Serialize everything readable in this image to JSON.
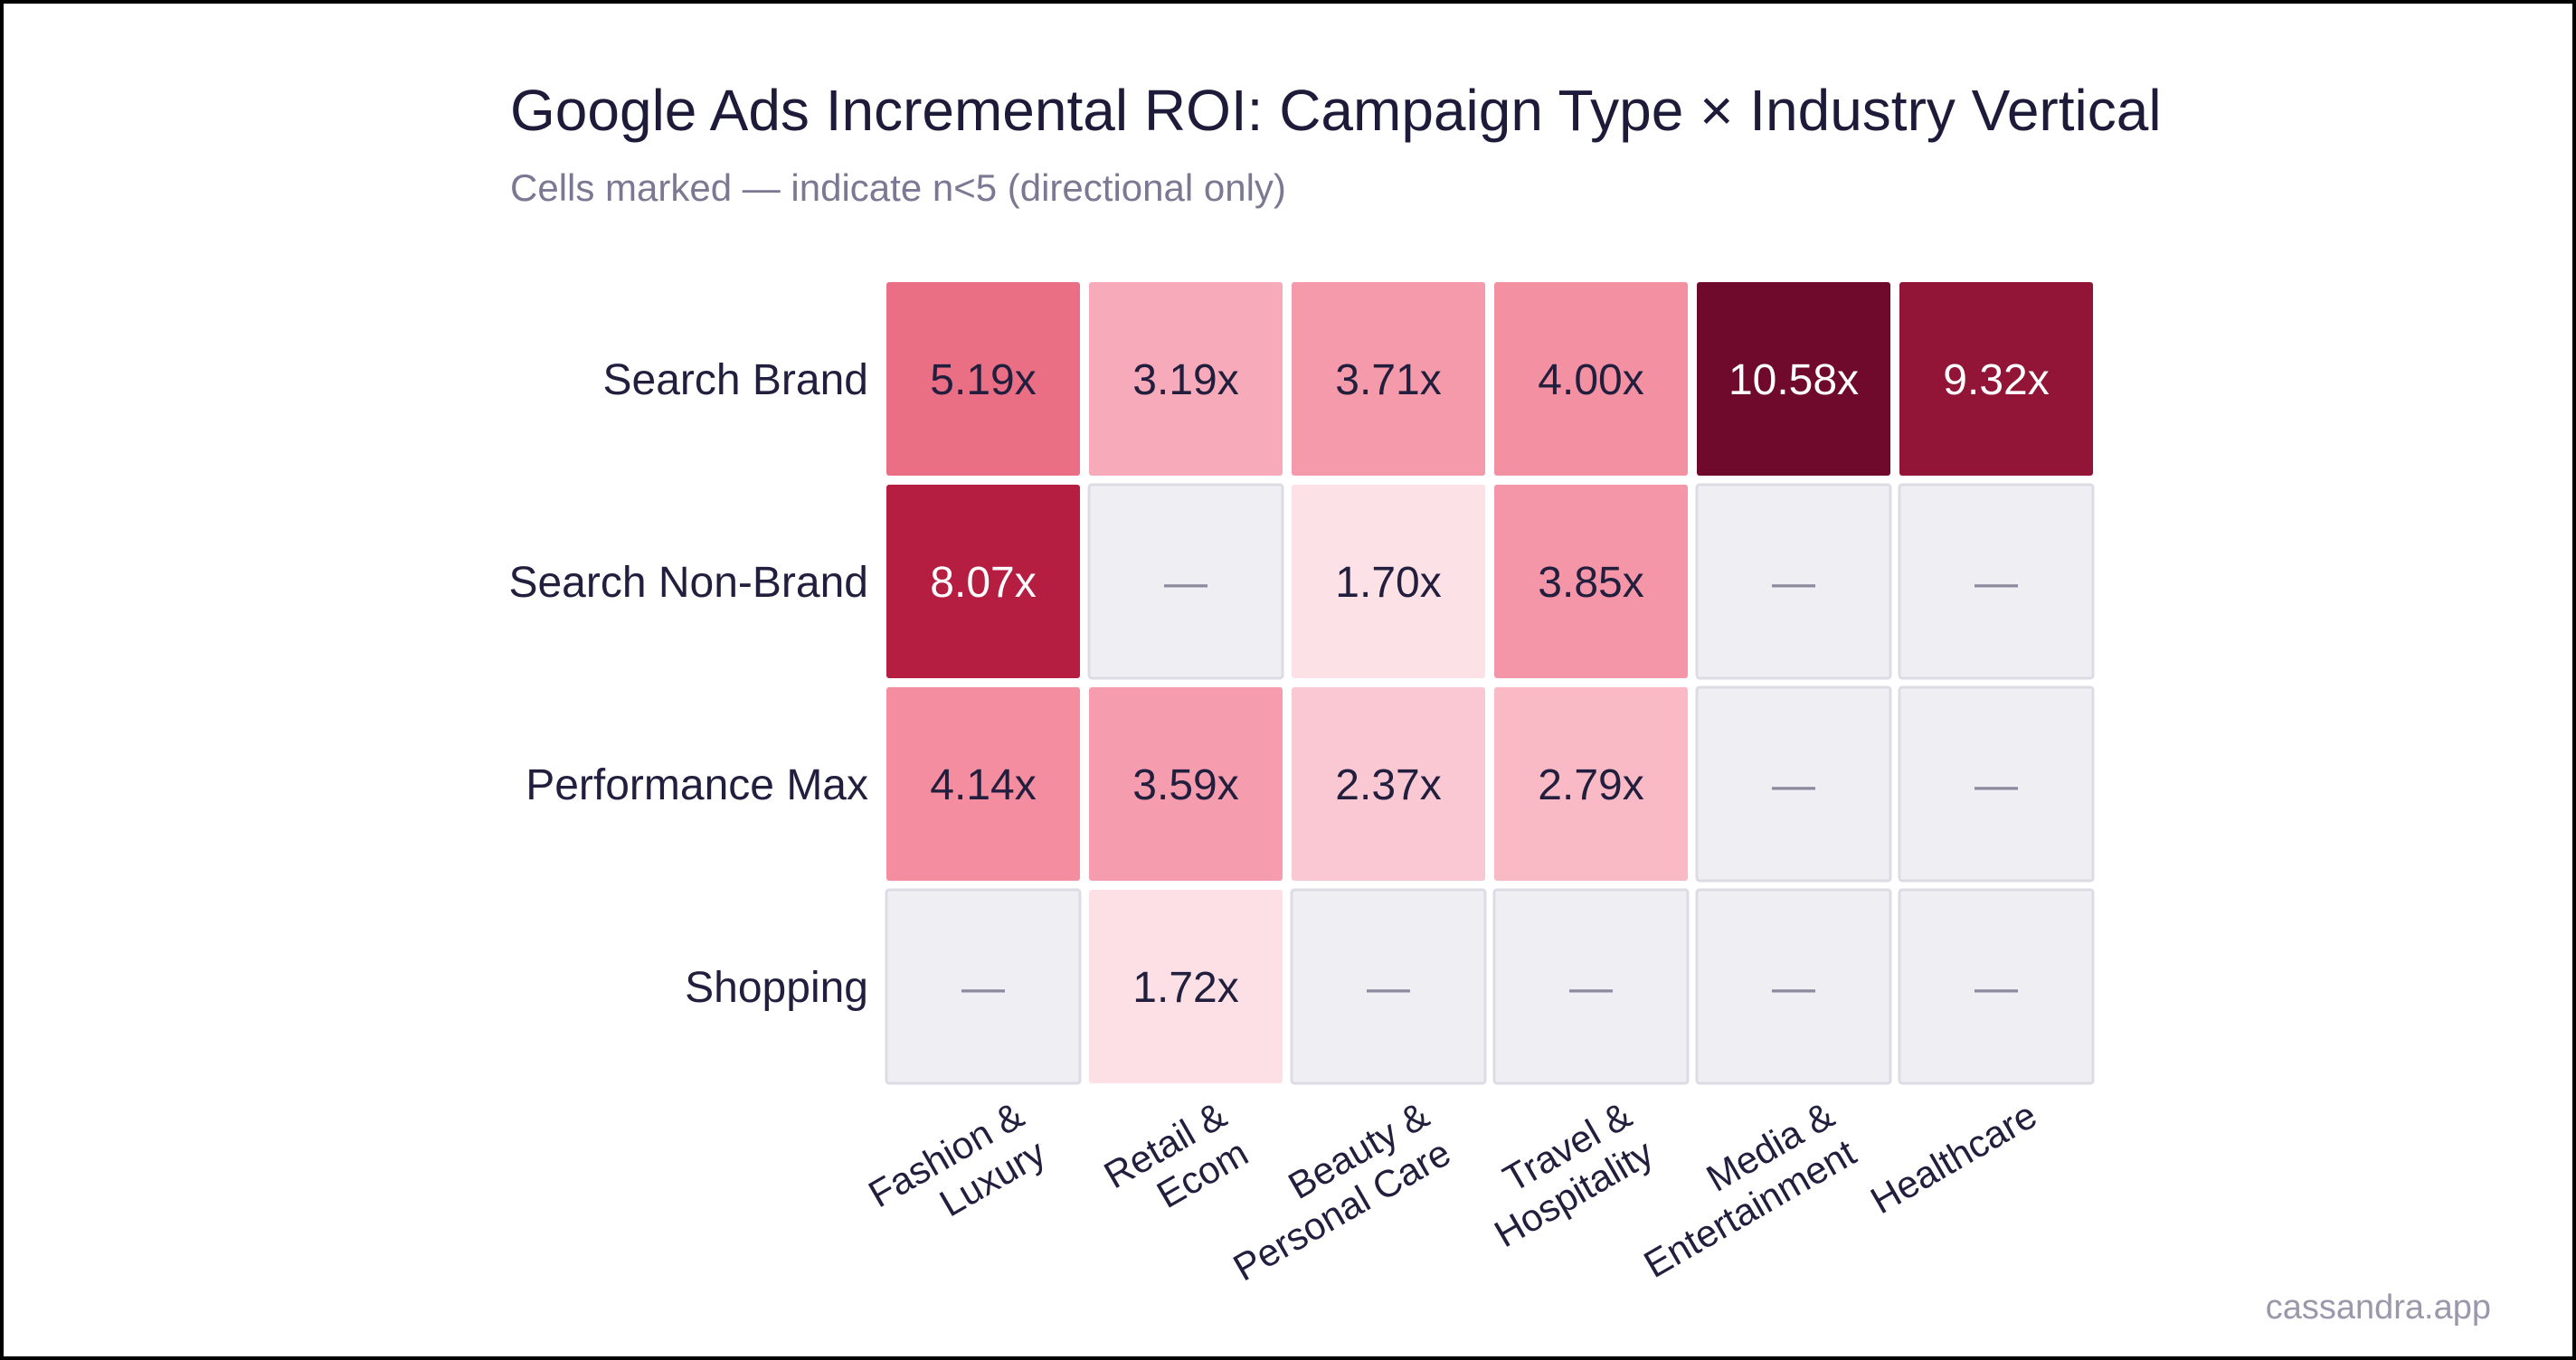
{
  "chart_data": {
    "type": "heatmap",
    "title": "Google Ads Incremental ROI: Campaign Type × Industry Vertical",
    "subtitle": "Cells marked — indicate n<5 (directional only)",
    "rows": [
      "Search Brand",
      "Search Non-Brand",
      "Performance Max",
      "Shopping"
    ],
    "columns": [
      [
        "Fashion &",
        "Luxury"
      ],
      [
        "Retail &",
        "Ecom"
      ],
      [
        "Beauty &",
        "Personal Care"
      ],
      [
        "Travel &",
        "Hospitality"
      ],
      [
        "Media &",
        "Entertainment"
      ],
      [
        "Healthcare"
      ]
    ],
    "values": [
      [
        5.19,
        3.19,
        3.71,
        4.0,
        10.58,
        9.32
      ],
      [
        8.07,
        null,
        1.7,
        3.85,
        null,
        null
      ],
      [
        4.14,
        3.59,
        2.37,
        2.79,
        null,
        null
      ],
      [
        null,
        1.72,
        null,
        null,
        null,
        null
      ]
    ],
    "value_suffix": "x",
    "missing_marker": "—",
    "color_range": [
      0,
      11
    ],
    "colors": {
      "low": "#fde8ec",
      "mid_low": "#f7a6b6",
      "mid": "#ee7488",
      "high": "#b81f42",
      "max": "#6e0a2c",
      "missing": "#efeef3",
      "missing_border": "#dddce4",
      "dark_text": "#221f3e",
      "light_text": "#ffffff",
      "missing_text": "#8c8a9c"
    }
  },
  "watermark": "cassandra.app"
}
